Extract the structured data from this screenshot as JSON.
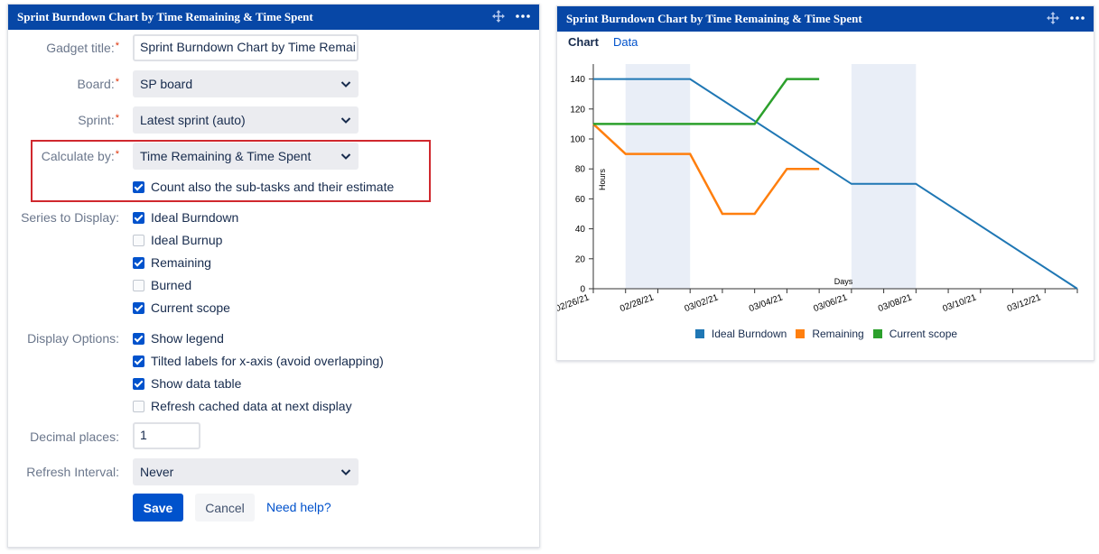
{
  "left_panel": {
    "title": "Sprint Burndown Chart by Time Remaining & Time Spent",
    "gadget_title_label": "Gadget title:",
    "gadget_title_value": "Sprint Burndown Chart by Time Remai",
    "board_label": "Board:",
    "board_value": "SP board",
    "sprint_label": "Sprint:",
    "sprint_value": "Latest sprint (auto)",
    "calc_label": "Calculate by:",
    "calc_value": "Time Remaining & Time Spent",
    "subtasks_label": "Count also the sub-tasks and their estimate",
    "subtasks_checked": true,
    "required_mark": "*",
    "series_label": "Series to Display:",
    "series": [
      {
        "label": "Ideal Burndown",
        "checked": true
      },
      {
        "label": "Ideal Burnup",
        "checked": false
      },
      {
        "label": "Remaining",
        "checked": true
      },
      {
        "label": "Burned",
        "checked": false
      },
      {
        "label": "Current scope",
        "checked": true
      }
    ],
    "display_label": "Display Options:",
    "display_options": [
      {
        "label": "Show legend",
        "checked": true
      },
      {
        "label": "Tilted labels for x-axis (avoid overlapping)",
        "checked": true
      },
      {
        "label": "Show data table",
        "checked": true
      },
      {
        "label": "Refresh cached data at next display",
        "checked": false
      }
    ],
    "decimal_label": "Decimal places:",
    "decimal_value": "1",
    "refresh_label": "Refresh Interval:",
    "refresh_value": "Never",
    "save_label": "Save",
    "cancel_label": "Cancel",
    "help_label": "Need help?"
  },
  "right_panel": {
    "title": "Sprint Burndown Chart by Time Remaining & Time Spent",
    "tab_chart": "Chart",
    "tab_data": "Data"
  },
  "icons": {
    "move": "move-icon",
    "more": "more-icon",
    "chevron": "chevron-down-icon"
  },
  "colors": {
    "header": "#0747a6",
    "primary": "#0052cc",
    "highlight": "#d0282e",
    "ideal": "#1f77b4",
    "remaining": "#ff7f0e",
    "scope": "#2ca02c",
    "weekend": "#e9eef7"
  },
  "chart_data": {
    "type": "line",
    "xlabel": "Days",
    "ylabel": "Hours",
    "ylim": [
      0,
      150
    ],
    "yticks": [
      0,
      20,
      40,
      60,
      80,
      100,
      120,
      140
    ],
    "x_tick_labels": [
      "02/26/21",
      "02/28/21",
      "03/02/21",
      "03/04/21",
      "03/06/21",
      "03/08/21",
      "03/10/21",
      "03/12/21"
    ],
    "x_start": "2021-02-26",
    "x_end": "2021-03-13",
    "weekends": [
      [
        "2021-02-27",
        "2021-03-01"
      ],
      [
        "2021-03-06",
        "2021-03-08"
      ]
    ],
    "legend_position": "bottom",
    "series": [
      {
        "name": "Ideal Burndown",
        "color": "#1f77b4",
        "points": [
          [
            "2021-02-26",
            140
          ],
          [
            "2021-03-01",
            140
          ],
          [
            "2021-03-06",
            70
          ],
          [
            "2021-03-08",
            70
          ],
          [
            "2021-03-13",
            0
          ]
        ]
      },
      {
        "name": "Remaining",
        "color": "#ff7f0e",
        "points": [
          [
            "2021-02-26",
            110
          ],
          [
            "2021-02-27",
            90
          ],
          [
            "2021-03-01",
            90
          ],
          [
            "2021-03-02",
            50
          ],
          [
            "2021-03-03",
            50
          ],
          [
            "2021-03-04",
            80
          ],
          [
            "2021-03-05",
            80
          ]
        ]
      },
      {
        "name": "Current scope",
        "color": "#2ca02c",
        "points": [
          [
            "2021-02-26",
            110
          ],
          [
            "2021-03-03",
            110
          ],
          [
            "2021-03-04",
            140
          ],
          [
            "2021-03-05",
            140
          ]
        ]
      }
    ]
  }
}
